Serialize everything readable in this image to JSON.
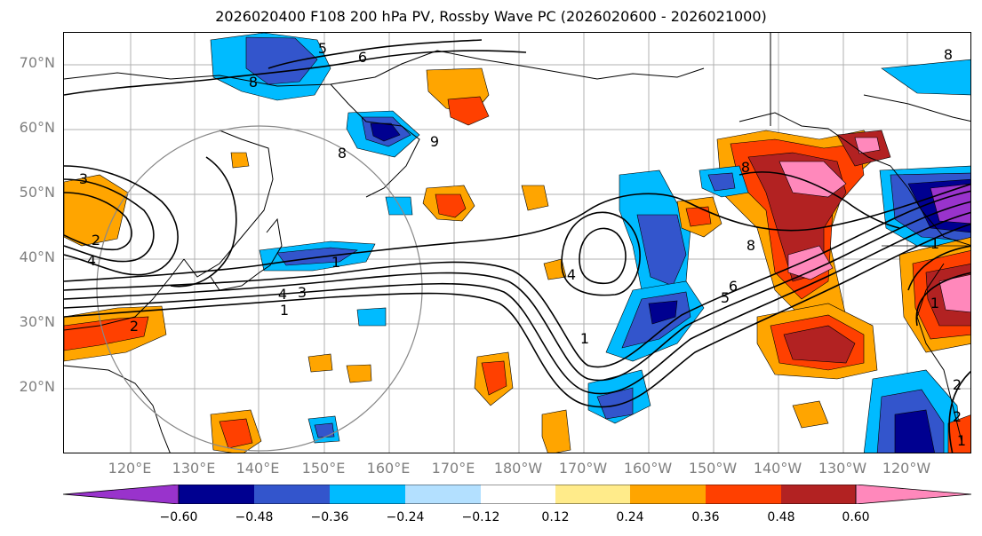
{
  "title": "2026020400 F108 200 hPa PV, Rossby Wave PC (2026020600 - 2026021000)",
  "lat_labels": [
    "70°N",
    "60°N",
    "50°N",
    "40°N",
    "30°N",
    "20°N"
  ],
  "lon_labels": [
    "120°E",
    "130°E",
    "140°E",
    "150°E",
    "160°E",
    "170°E",
    "180°W",
    "170°W",
    "160°W",
    "150°W",
    "140°W",
    "130°W",
    "120°W"
  ],
  "contour_labels": [
    "5",
    "6",
    "8",
    "9",
    "8",
    "3",
    "2",
    "4",
    "1",
    "1",
    "3",
    "4",
    "4",
    "1",
    "2",
    "6",
    "5",
    "8",
    "8",
    "8",
    "1",
    "1",
    "2",
    "2",
    "1"
  ],
  "colorbar": {
    "ticks": [
      "−0.60",
      "−0.48",
      "−0.36",
      "−0.24",
      "−0.12",
      "0.12",
      "0.24",
      "0.36",
      "0.48",
      "0.60"
    ],
    "colors": [
      "#9933cc",
      "#000090",
      "#3355cc",
      "#00bbff",
      "#b3e0ff",
      "#ffffff",
      "#ffeb8a",
      "#ffa500",
      "#ff4000",
      "#b22222",
      "#ff88bb"
    ]
  },
  "colors": {
    "axis_label": "#7f7f7f",
    "contour": "#000000",
    "circle": "#888888",
    "grid": "#b0b0b0"
  }
}
